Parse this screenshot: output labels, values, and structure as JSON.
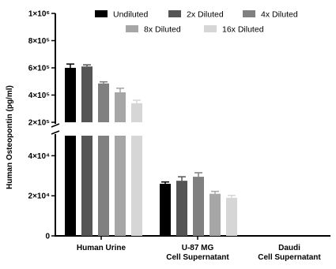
{
  "chart_data": {
    "type": "bar",
    "title": "",
    "xlabel": "",
    "ylabel": "Human Osteopontin (pg/ml)",
    "y_axis_break": true,
    "upper_segment": {
      "range": [
        200000,
        1000000
      ],
      "ticks": [
        {
          "value": 200000,
          "label": "2×10⁵"
        },
        {
          "value": 400000,
          "label": "4×10⁵"
        },
        {
          "value": 600000,
          "label": "6×10⁵"
        },
        {
          "value": 800000,
          "label": "8×10⁵"
        },
        {
          "value": 1000000,
          "label": "1×10⁶"
        }
      ]
    },
    "lower_segment": {
      "range": [
        0,
        50000
      ],
      "ticks": [
        {
          "value": 0,
          "label": "0"
        },
        {
          "value": 20000,
          "label": "2×10⁴"
        },
        {
          "value": 40000,
          "label": "4×10⁴"
        }
      ]
    },
    "categories": [
      {
        "lines": [
          "Human Urine"
        ]
      },
      {
        "lines": [
          "U-87 MG",
          "Cell Supernatant"
        ]
      },
      {
        "lines": [
          "Daudi",
          "Cell Supernatant"
        ]
      }
    ],
    "series": [
      {
        "name": "Undiluted",
        "color": "#000000",
        "values": [
          600000,
          26000,
          0
        ],
        "errors": [
          28000,
          900,
          0
        ]
      },
      {
        "name": "2x Diluted",
        "color": "#555555",
        "values": [
          610000,
          27500,
          0
        ],
        "errors": [
          12000,
          2000,
          0
        ]
      },
      {
        "name": "4x Diluted",
        "color": "#808080",
        "values": [
          485000,
          29500,
          0
        ],
        "errors": [
          12000,
          2000,
          0
        ]
      },
      {
        "name": "8x Diluted",
        "color": "#a6a6a6",
        "values": [
          420000,
          21000,
          0
        ],
        "errors": [
          30000,
          1200,
          0
        ]
      },
      {
        "name": "16x Diluted",
        "color": "#d6d6d6",
        "values": [
          340000,
          19000,
          0
        ],
        "errors": [
          22000,
          1200,
          0
        ]
      }
    ],
    "legend_position": "top-right",
    "grid": false
  }
}
